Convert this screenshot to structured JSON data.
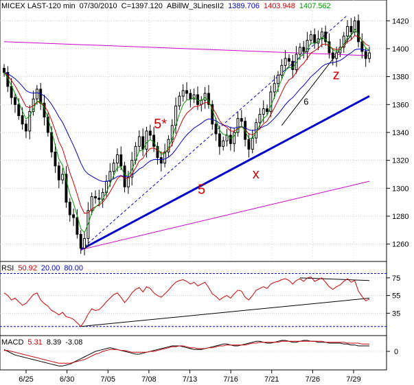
{
  "chart_data": [
    {
      "panel": "price",
      "type": "candlestick",
      "title_parts": [
        {
          "text": "MICEX LAST-120 min",
          "color": "#000000"
        },
        {
          "text": "07/30/2010",
          "color": "#000000"
        },
        {
          "text": "C=1397.120",
          "color": "#000000"
        },
        {
          "text": "ABillW_3LinesII2",
          "color": "#000000"
        },
        {
          "text": "1389.706",
          "color": "#0000cc"
        },
        {
          "text": "1403.948",
          "color": "#cc0000"
        },
        {
          "text": "1407.562",
          "color": "#009900"
        }
      ],
      "x_ticks": [
        "6/25",
        "6/30",
        "7/05",
        "7/08",
        "7/13",
        "7/16",
        "7/21",
        "7/26",
        "7/29"
      ],
      "y_ticks": [
        1260,
        1280,
        1300,
        1320,
        1340,
        1360,
        1380,
        1400,
        1420
      ],
      "ylim": [
        1250,
        1428
      ],
      "candle_color": "#000000",
      "closes": [
        1383,
        1373,
        1365,
        1360,
        1352,
        1346,
        1341,
        1355,
        1364,
        1371,
        1361,
        1351,
        1340,
        1326,
        1316,
        1306,
        1310,
        1290,
        1281,
        1279,
        1267,
        1257,
        1264,
        1284,
        1294,
        1293,
        1292,
        1297,
        1305,
        1312,
        1318,
        1324,
        1316,
        1301,
        1308,
        1320,
        1330,
        1337,
        1328,
        1341,
        1338,
        1330,
        1322,
        1318,
        1326,
        1335,
        1345,
        1359,
        1366,
        1370,
        1368,
        1364,
        1367,
        1360,
        1363,
        1368,
        1360,
        1346,
        1339,
        1330,
        1334,
        1338,
        1332,
        1340,
        1350,
        1348,
        1335,
        1328,
        1336,
        1347,
        1353,
        1357,
        1355,
        1369,
        1375,
        1381,
        1388,
        1393,
        1391,
        1385,
        1396,
        1401,
        1398,
        1406,
        1410,
        1404,
        1407,
        1412,
        1405,
        1397,
        1393,
        1397,
        1401,
        1409,
        1416,
        1412,
        1420,
        1405,
        1398,
        1393,
        1397
      ],
      "series": [
        {
          "name": "",
          "color": "#0000cc",
          "smoothing": 20
        },
        {
          "name": "",
          "color": "#cc0000",
          "smoothing": 8
        },
        {
          "name": "",
          "color": "#009900",
          "smoothing": 4
        }
      ],
      "lines": [
        {
          "name": "",
          "color": "#0000cc",
          "style": "solid",
          "width": 3,
          "from": [
            21,
            1256
          ],
          "to": [
            100,
            1366
          ]
        },
        {
          "name": "",
          "color": "#0000cc",
          "style": "dashed",
          "width": 1,
          "from": [
            21,
            1256
          ],
          "to": [
            94,
            1424
          ]
        },
        {
          "name": "",
          "color": "#cc00cc",
          "style": "solid",
          "width": 1,
          "from": [
            0,
            1405
          ],
          "to": [
            100,
            1395
          ]
        },
        {
          "name": "",
          "color": "#cc00cc",
          "style": "solid",
          "width": 1,
          "from": [
            21,
            1256
          ],
          "to": [
            100,
            1305
          ]
        },
        {
          "name": "",
          "color": "#000000",
          "style": "solid",
          "width": 1,
          "from": [
            76,
            1345
          ],
          "to": [
            96,
            1413
          ]
        }
      ],
      "annotations": [
        {
          "text": "5*",
          "color": "#cc0000",
          "x": 41,
          "y": 1343
        },
        {
          "text": "5",
          "color": "#cc0000",
          "x": 53,
          "y": 1296
        },
        {
          "text": "x",
          "color": "#cc0000",
          "x": 68,
          "y": 1307
        },
        {
          "text": "6",
          "color": "#000000",
          "x": 82,
          "y": 1360
        },
        {
          "text": "z",
          "color": "#cc0000",
          "x": 90,
          "y": 1378
        }
      ]
    },
    {
      "panel": "rsi",
      "type": "line",
      "label_parts": [
        {
          "text": "RSI",
          "color": "#000000"
        },
        {
          "text": "50.92",
          "color": "#cc0000"
        },
        {
          "text": "20.00",
          "color": "#0000cc"
        },
        {
          "text": "80.00",
          "color": "#0000cc"
        }
      ],
      "y_ticks": [
        35,
        55,
        75
      ],
      "ylim": [
        12,
        85
      ],
      "levels": [
        {
          "value": 80,
          "color": "#0000cc"
        },
        {
          "value": 20,
          "color": "#0000cc"
        }
      ],
      "color": "#cc0000",
      "values": [
        58,
        55,
        50,
        52,
        48,
        44,
        46,
        51,
        56,
        58,
        50,
        46,
        43,
        38,
        36,
        33,
        36,
        31,
        30,
        28,
        24,
        20,
        26,
        34,
        40,
        38,
        39,
        43,
        48,
        52,
        56,
        58,
        53,
        47,
        52,
        58,
        62,
        64,
        59,
        65,
        63,
        58,
        55,
        53,
        57,
        61,
        66,
        70,
        72,
        73,
        71,
        68,
        70,
        66,
        68,
        70,
        64,
        57,
        54,
        50,
        53,
        55,
        52,
        57,
        61,
        60,
        53,
        50,
        55,
        61,
        63,
        65,
        63,
        68,
        70,
        71,
        73,
        74,
        72,
        68,
        72,
        74,
        71,
        75,
        76,
        71,
        73,
        75,
        70,
        65,
        62,
        65,
        67,
        71,
        74,
        70,
        72,
        60,
        54,
        49,
        51
      ],
      "lines": [
        {
          "color": "#000000",
          "from": [
            21,
            20
          ],
          "to": [
            100,
            52
          ]
        },
        {
          "color": "#000000",
          "from": [
            81,
            75
          ],
          "to": [
            100,
            72
          ]
        }
      ]
    },
    {
      "panel": "macd",
      "type": "line",
      "label_parts": [
        {
          "text": "MACD",
          "color": "#000000"
        },
        {
          "text": "5.31",
          "color": "#cc0000"
        },
        {
          "text": "8.39",
          "color": "#000000"
        },
        {
          "text": "-3.08",
          "color": "#000000"
        }
      ],
      "y_ticks": [
        0
      ],
      "ylim": [
        -9,
        6
      ],
      "line_color": "#000000",
      "signal_color": "#cc0000",
      "macd": [
        1,
        0,
        -1,
        -2,
        -2.5,
        -3,
        -3.5,
        -4,
        -4.5,
        -5,
        -5.5,
        -6,
        -6.5,
        -7,
        -7.5,
        -8,
        -8,
        -7.5,
        -7,
        -6,
        -5,
        -4,
        -3,
        -2,
        -1,
        0,
        0.5,
        1,
        1.5,
        2,
        1.5,
        1,
        0.5,
        0,
        -0.5,
        -1,
        -1.5,
        -1.5,
        -1,
        -0.5,
        0,
        0.5,
        1,
        1.5,
        2,
        2.5,
        3,
        3,
        3,
        2.5,
        2,
        1.5,
        1,
        1,
        1,
        1.5,
        2,
        2.5,
        3,
        3.5,
        4,
        4,
        3.5,
        3,
        3,
        3.5,
        4,
        4.5,
        5,
        5.5,
        5.5,
        5,
        4.5,
        4.5,
        5,
        5.5,
        6,
        6,
        5.5,
        5,
        5,
        5.5,
        6,
        6,
        5.5,
        5.5,
        5,
        5,
        5,
        4.5,
        4.5,
        4.5,
        4.5,
        4,
        4,
        3.5,
        3.5,
        3,
        3,
        3,
        3
      ],
      "signal": [
        0.5,
        0.5,
        0,
        -0.5,
        -1,
        -1.5,
        -2,
        -2.5,
        -3,
        -3.5,
        -4,
        -4.5,
        -5,
        -5.5,
        -6,
        -6.5,
        -6.5,
        -6.5,
        -6.5,
        -6,
        -5.5,
        -5,
        -4.5,
        -3.5,
        -2.5,
        -1.5,
        -1,
        0,
        0.5,
        1,
        1,
        1,
        0.5,
        0.5,
        0,
        -0.5,
        -0.5,
        -0.5,
        -0.5,
        -0.5,
        0,
        0,
        0.5,
        1,
        1.5,
        2,
        2.5,
        2.5,
        3,
        3,
        2.5,
        2,
        2,
        1.5,
        1.5,
        1.5,
        2,
        2,
        2.5,
        3,
        3,
        3.5,
        3.5,
        3.5,
        3.5,
        3.5,
        3.5,
        4,
        4.5,
        4.5,
        5,
        5,
        5,
        5,
        5,
        5,
        5.5,
        5.5,
        5.5,
        5.5,
        5.5,
        5.5,
        5.5,
        5.5,
        5.5,
        5.5,
        5.5,
        5.5,
        5,
        5,
        5,
        5,
        5,
        5,
        4.5,
        4.5,
        4.5,
        4.5,
        4,
        4,
        4
      ]
    }
  ]
}
